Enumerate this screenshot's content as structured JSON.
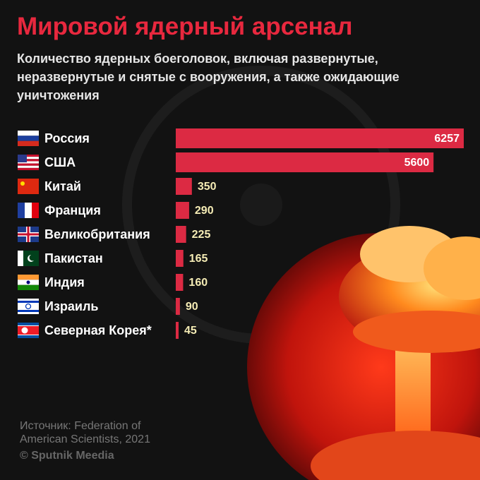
{
  "chart_data": {
    "type": "bar",
    "title": "Мировой ядерный арсенал",
    "subtitle": "Количество ядерных боеголовок, включая развернутые, неразвернутые и снятые с вооружения, а также ожидающие уничтожения",
    "categories": [
      "Россия",
      "США",
      "Китай",
      "Франция",
      "Великобритания",
      "Пакистан",
      "Индия",
      "Израиль",
      "Северная Корея*"
    ],
    "values": [
      6257,
      5600,
      350,
      290,
      225,
      165,
      160,
      90,
      45
    ],
    "color": "#dc2a43",
    "source": "Источник: Federation of American Scientists, 2021",
    "credit": "© Sputnik Meedia"
  }
}
